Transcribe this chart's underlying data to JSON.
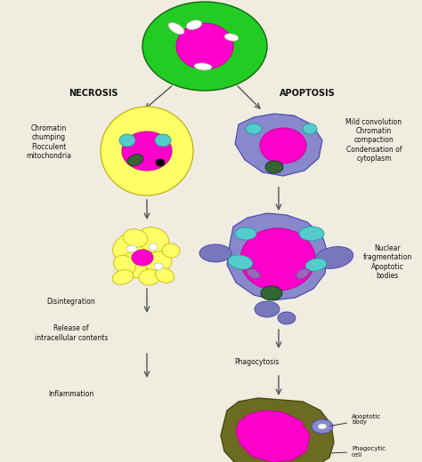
{
  "bg_color": "#f0ece0",
  "necrosis_label": "NECROSIS",
  "apoptosis_label": "APOPTOSIS",
  "colors": {
    "green_cell": "#22cc22",
    "magenta": "#ff00cc",
    "yellow": "#ffff66",
    "blue_purple": "#8888cc",
    "teal": "#44bbbb",
    "cyan_organelle": "#55cccc",
    "dark_green": "#336633",
    "olive": "#6b6b22",
    "white": "#ffffff",
    "arrow": "#555555",
    "text": "#111111",
    "black": "#000000",
    "purple_small": "#9966bb",
    "blue_sat": "#7777bb"
  },
  "annotations": {
    "necrosis_stage1": "Chromatin\nchumping\nFlocculent\nmitochondria",
    "apoptosis_stage1": "Mild convolution\nChromatin\ncompaction\nCondensation of\ncytoplasm",
    "necrosis_stage2": "Disintegration",
    "apoptosis_stage2_label": "Nuclear\nfragmentation\nApoptotic\nbodies",
    "necrosis_stage3": "Release of\nintracellular contents",
    "apoptosis_stage3": "Phagocytosis",
    "necrosis_stage4": "Inflammation",
    "apoptotic_body": "Apoptotic\nbody",
    "phagocytic_cell": "Phagocytic\ncell"
  }
}
